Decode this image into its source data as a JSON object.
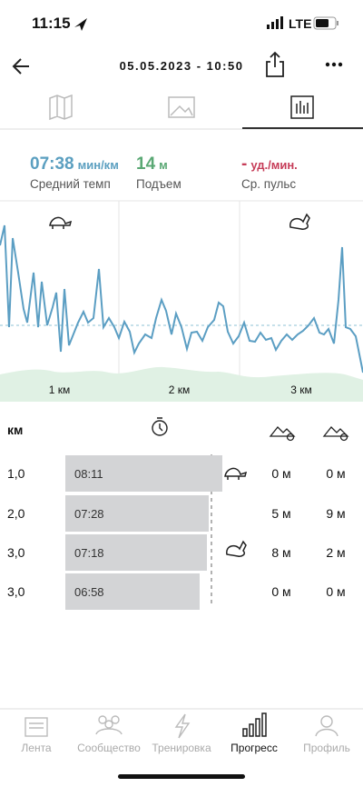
{
  "status_bar": {
    "time": "11:15",
    "network": "LTE"
  },
  "header": {
    "title": "05.05.2023 - 10:50"
  },
  "stats": [
    {
      "value": "07:38",
      "unit": "мин/км",
      "label": "Средний темп"
    },
    {
      "value": "14",
      "unit": "м",
      "label": "Подъем"
    },
    {
      "value": "-",
      "unit": "уд./мин.",
      "label": "Ср. пульс"
    }
  ],
  "chart": {
    "km_labels": [
      "1 км",
      "2 км",
      "3 км"
    ]
  },
  "table": {
    "header": "км",
    "rows": [
      [
        "1,0",
        "08:11",
        "0 м",
        "0 м"
      ],
      [
        "2,0",
        "07:28",
        "5 м",
        "9 м"
      ],
      [
        "3,0",
        "07:18",
        "8 м",
        "2 м"
      ],
      [
        "3,0",
        "06:58",
        "0 м",
        "0 м"
      ]
    ]
  },
  "tab_bar": [
    "Лента",
    "Сообщество",
    "Тренировка",
    "Прогресс",
    "Профиль"
  ]
}
